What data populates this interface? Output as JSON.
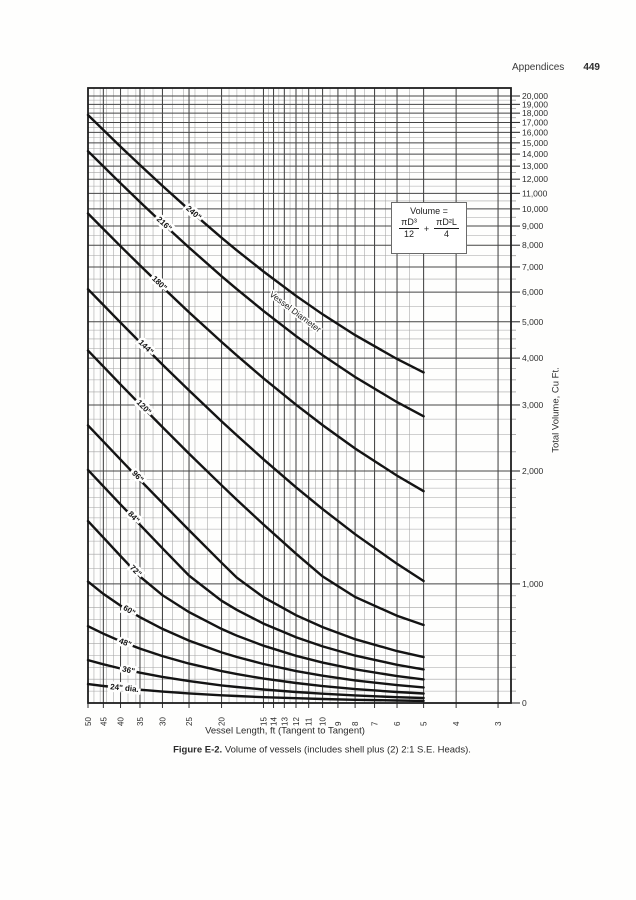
{
  "page": {
    "header_label": "Appendices",
    "page_number": "449"
  },
  "figure": {
    "caption_label": "Figure E-2.",
    "caption_text": "Volume of vessels (includes shell plus (2) 2:1 S.E. Heads).",
    "x_axis_label": "Vessel Length, ft (Tangent to Tangent)",
    "y_axis_label": "Total Volume, Cu Ft.",
    "formula": {
      "title": "Volume =",
      "numerator_1": "πD³",
      "denominator_1": "12",
      "operator": "+",
      "numerator_2": "πD²L",
      "denominator_2": "4"
    },
    "curve_annotation": {
      "text": "Vessel Diameter",
      "at_length_ft": 12.2,
      "at_volume_cuft": 5240
    }
  },
  "chart_data": {
    "type": "line",
    "title": "Figure E-2. Volume of vessels (includes shell plus (2) 2:1 S.E. Heads).",
    "xlabel": "Vessel Length, ft (Tangent to Tangent)",
    "ylabel": "Total Volume, Cu Ft.",
    "x_scale": "log-reversed (50 ft at left, 3 ft at right)",
    "y_scale": "log from 20,000 down to 1,000; compressed linear from 1,000 to 0 at bottom",
    "x_range": [
      50,
      2.75
    ],
    "y_range": [
      0,
      20000
    ],
    "grid": "on, dense minor log grid; minor vertical grid ends at L = 5",
    "legend_position": "labels on curves",
    "x_ticks": [
      50,
      45,
      40,
      35,
      30,
      25,
      20,
      15,
      14,
      13,
      12,
      11,
      10,
      9,
      8,
      7,
      6,
      5,
      4,
      3
    ],
    "x_minor_ticks": [
      48,
      46,
      44,
      42,
      38,
      36,
      34,
      32,
      28,
      26,
      24,
      22,
      19,
      18,
      17,
      16,
      14.5,
      13.5,
      12.5,
      11.5,
      10.5,
      9.5,
      8.5,
      7.5,
      6.5,
      5.5
    ],
    "y_tick_values": [
      20000,
      19000,
      18000,
      17000,
      16000,
      15000,
      14000,
      13000,
      12000,
      11000,
      10000,
      9000,
      8000,
      7000,
      6000,
      5000,
      4000,
      3000,
      2000,
      1000,
      0
    ],
    "y_tick_labels": [
      "20,000",
      "19,000",
      "18,000",
      "17,000",
      "16,000",
      "15,000",
      "14,000",
      "13,000",
      "12,000",
      "11,000",
      "10,000",
      "9,000",
      "8,000",
      "7,000",
      "6,000",
      "5,000",
      "4,000",
      "3,000",
      "2,000",
      "1,000",
      "0"
    ],
    "zero_label": "0",
    "L_values": [
      50,
      45,
      40,
      35,
      30,
      25,
      20,
      18,
      15,
      12,
      10,
      8,
      6,
      5
    ],
    "series": [
      {
        "name": "240\"",
        "diameter_in": 240,
        "label_at_L": 24.5,
        "values": [
          17802,
          16231,
          14661,
          13090,
          11519,
          9948,
          8378,
          7749,
          6807,
          5864,
          5236,
          4608,
          3979,
          3665
        ]
      },
      {
        "name": "216\"",
        "diameter_in": 216,
        "label_at_L": 30,
        "values": [
          14250,
          12978,
          11706,
          10433,
          9161,
          7889,
          6616,
          6107,
          5344,
          4580,
          4072,
          3563,
          3054,
          2799
        ]
      },
      {
        "name": "180\"",
        "diameter_in": 180,
        "label_at_L": 31,
        "values": [
          9719,
          8836,
          7952,
          7069,
          6185,
          5301,
          4418,
          4064,
          3534,
          3004,
          2651,
          2297,
          1944,
          1767
        ]
      },
      {
        "name": "144\"",
        "diameter_in": 144,
        "label_at_L": 34,
        "values": [
          6107,
          5542,
          4976,
          4411,
          3845,
          3280,
          2714,
          2488,
          2149,
          1810,
          1583,
          1357,
          1131,
          1018
        ]
      },
      {
        "name": "120\"",
        "diameter_in": 120,
        "label_at_L": 34.5,
        "values": [
          4189,
          3796,
          3403,
          3011,
          2618,
          2225,
          1833,
          1675,
          1440,
          1204,
          1047,
          890,
          733,
          655
        ]
      },
      {
        "name": "96\"",
        "diameter_in": 96,
        "label_at_L": 36,
        "values": [
          2647,
          2396,
          2145,
          1893,
          1642,
          1391,
          1139,
          1039,
          888,
          737,
          637,
          536,
          436,
          385
        ]
      },
      {
        "name": "84\"",
        "diameter_in": 84,
        "label_at_L": 37,
        "values": [
          2014,
          1821,
          1629,
          1437,
          1244,
          1052,
          859,
          782,
          667,
          552,
          475,
          398,
          321,
          282
        ]
      },
      {
        "name": "72\"",
        "diameter_in": 72,
        "label_at_L": 36.5,
        "values": [
          1470,
          1329,
          1187,
          1046,
          905,
          763,
          622,
          565,
          481,
          396,
          339,
          283,
          226,
          198
        ]
      },
      {
        "name": "60\"",
        "diameter_in": 60,
        "label_at_L": 38,
        "values": [
          1014,
          916,
          818,
          720,
          622,
          524,
          425,
          386,
          327,
          268,
          229,
          190,
          150,
          131
        ]
      },
      {
        "name": "48\"",
        "diameter_in": 48,
        "label_at_L": 39,
        "values": [
          645,
          582,
          519,
          457,
          394,
          331,
          268,
          243,
          205,
          168,
          142,
          117,
          92,
          80
        ]
      },
      {
        "name": "36\"",
        "diameter_in": 36,
        "label_at_L": 38,
        "values": [
          360,
          325,
          290,
          254,
          219,
          184,
          148,
          134,
          113,
          92,
          78,
          64,
          49,
          42
        ]
      },
      {
        "name": "24\" dia.",
        "diameter_in": 24,
        "label_at_L": 39,
        "values": [
          159,
          143,
          128,
          112,
          96,
          81,
          65,
          59,
          49,
          40,
          34,
          27,
          21,
          18
        ]
      }
    ]
  }
}
